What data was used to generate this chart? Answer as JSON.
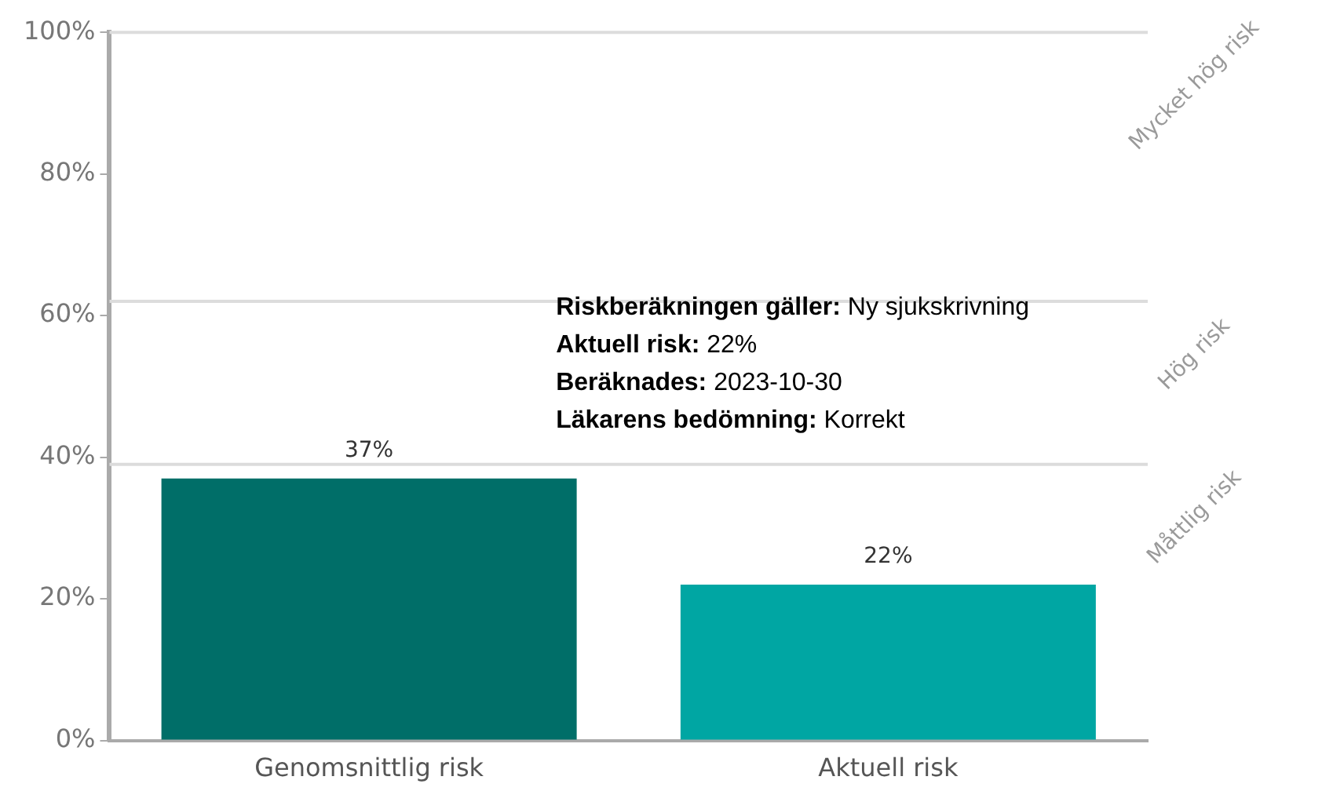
{
  "chart_data": {
    "type": "bar",
    "categories": [
      "Genomsnittlig risk",
      "Aktuell risk"
    ],
    "values": [
      37,
      22
    ],
    "colors": [
      "#006e68",
      "#00a6a3"
    ],
    "value_labels": [
      "37%",
      "22%"
    ],
    "ylim": [
      0,
      100
    ],
    "yticks": [
      {
        "value": 0,
        "label": "0%"
      },
      {
        "value": 20,
        "label": "20%"
      },
      {
        "value": 40,
        "label": "40%"
      },
      {
        "value": 60,
        "label": "60%"
      },
      {
        "value": 80,
        "label": "80%"
      },
      {
        "value": 100,
        "label": "100%"
      }
    ],
    "ref_lines": [
      {
        "axis": "y",
        "value": 39,
        "label": "Måttlig risk",
        "color": "#dcdcdc"
      },
      {
        "axis": "y",
        "value": 62,
        "label": "Hög risk",
        "color": "#dcdcdc"
      },
      {
        "axis": "y",
        "value": 100,
        "label": "Mycket hög risk",
        "color": "#dcdcdc"
      }
    ],
    "annotations": [
      "Riskberäkningen gäller: Ny sjukskrivning",
      "Aktuell risk: 22%",
      "Beräknades: 2023-10-30",
      "Läkarens bedömning: Korrekt"
    ],
    "grid": false,
    "legend": false
  }
}
